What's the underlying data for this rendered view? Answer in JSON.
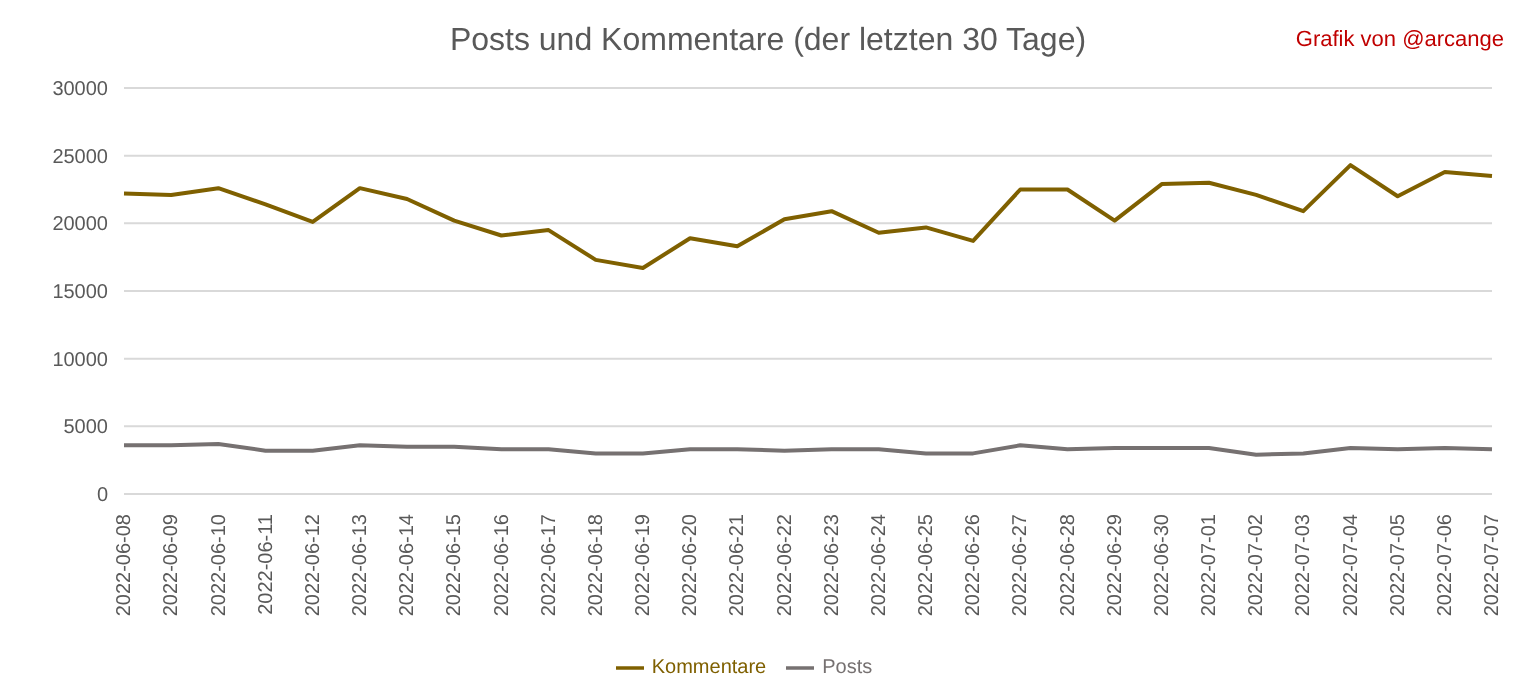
{
  "chart_data": {
    "type": "line",
    "title": "Posts und Kommentare (der letzten 30 Tage)",
    "annotations": [
      "Grafik von @arcange"
    ],
    "categories": [
      "2022-06-08",
      "2022-06-09",
      "2022-06-10",
      "2022-06-11",
      "2022-06-12",
      "2022-06-13",
      "2022-06-14",
      "2022-06-15",
      "2022-06-16",
      "2022-06-17",
      "2022-06-18",
      "2022-06-19",
      "2022-06-20",
      "2022-06-21",
      "2022-06-22",
      "2022-06-23",
      "2022-06-24",
      "2022-06-25",
      "2022-06-26",
      "2022-06-27",
      "2022-06-28",
      "2022-06-29",
      "2022-06-30",
      "2022-07-01",
      "2022-07-02",
      "2022-07-03",
      "2022-07-04",
      "2022-07-05",
      "2022-07-06",
      "2022-07-07"
    ],
    "series": [
      {
        "name": "Posts",
        "color": "#767171",
        "values": [
          3600,
          3600,
          3700,
          3200,
          3200,
          3600,
          3500,
          3500,
          3300,
          3300,
          3000,
          3000,
          3300,
          3300,
          3200,
          3300,
          3300,
          3000,
          3000,
          3600,
          3300,
          3400,
          3400,
          3400,
          2900,
          3000,
          3400,
          3300,
          3400,
          3300
        ]
      },
      {
        "name": "Kommentare",
        "color": "#7f6000",
        "values": [
          22200,
          22100,
          22600,
          21400,
          20100,
          22600,
          21800,
          20200,
          19100,
          19500,
          17300,
          16700,
          18900,
          18300,
          20300,
          20900,
          19300,
          19700,
          18700,
          22500,
          22500,
          20200,
          22900,
          23000,
          22100,
          20900,
          24300,
          22000,
          23800,
          23500
        ]
      }
    ],
    "ylim": [
      0,
      30000
    ],
    "yticks": [
      0,
      5000,
      10000,
      15000,
      20000,
      25000,
      30000
    ],
    "grid": "y",
    "legend": "bottom",
    "marker": "none",
    "line_style": "solid"
  }
}
